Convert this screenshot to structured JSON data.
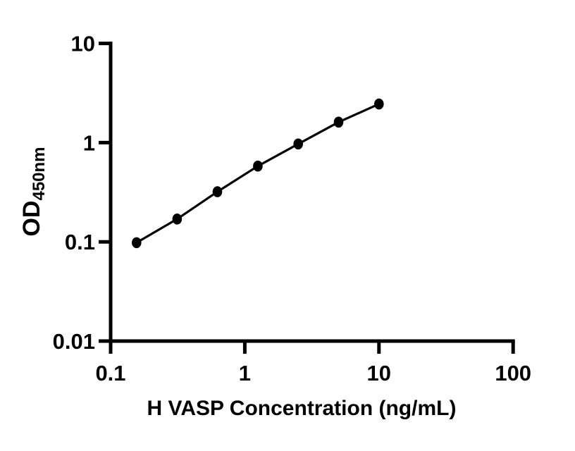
{
  "figure": {
    "background": "#ffffff",
    "foreground": "#000000"
  },
  "chart_data": {
    "type": "scatter",
    "subtype": "line-with-markers",
    "title": "",
    "xlabel": "H VASP Concentration (ng/mL)",
    "ylabel_main": "OD",
    "ylabel_sub": "450nm",
    "x_scale": "log10",
    "y_scale": "log10",
    "xlim": [
      0.1,
      100
    ],
    "ylim": [
      0.01,
      10
    ],
    "x_tick_values": [
      0.1,
      1,
      10,
      100
    ],
    "x_tick_labels": [
      "0.1",
      "1",
      "10",
      "100"
    ],
    "y_tick_values": [
      10,
      1,
      0.1,
      0.01
    ],
    "y_tick_labels": [
      "10",
      "1",
      "0.1",
      "0.01"
    ],
    "grid": false,
    "legend": false,
    "marker": "filled-circle",
    "line_color": "#000000",
    "marker_color": "#000000",
    "series": [
      {
        "x": [
          0.156,
          0.313,
          0.625,
          1.25,
          2.5,
          5,
          10
        ],
        "y": [
          0.098,
          0.17,
          0.32,
          0.58,
          0.97,
          1.61,
          2.45
        ]
      }
    ]
  }
}
